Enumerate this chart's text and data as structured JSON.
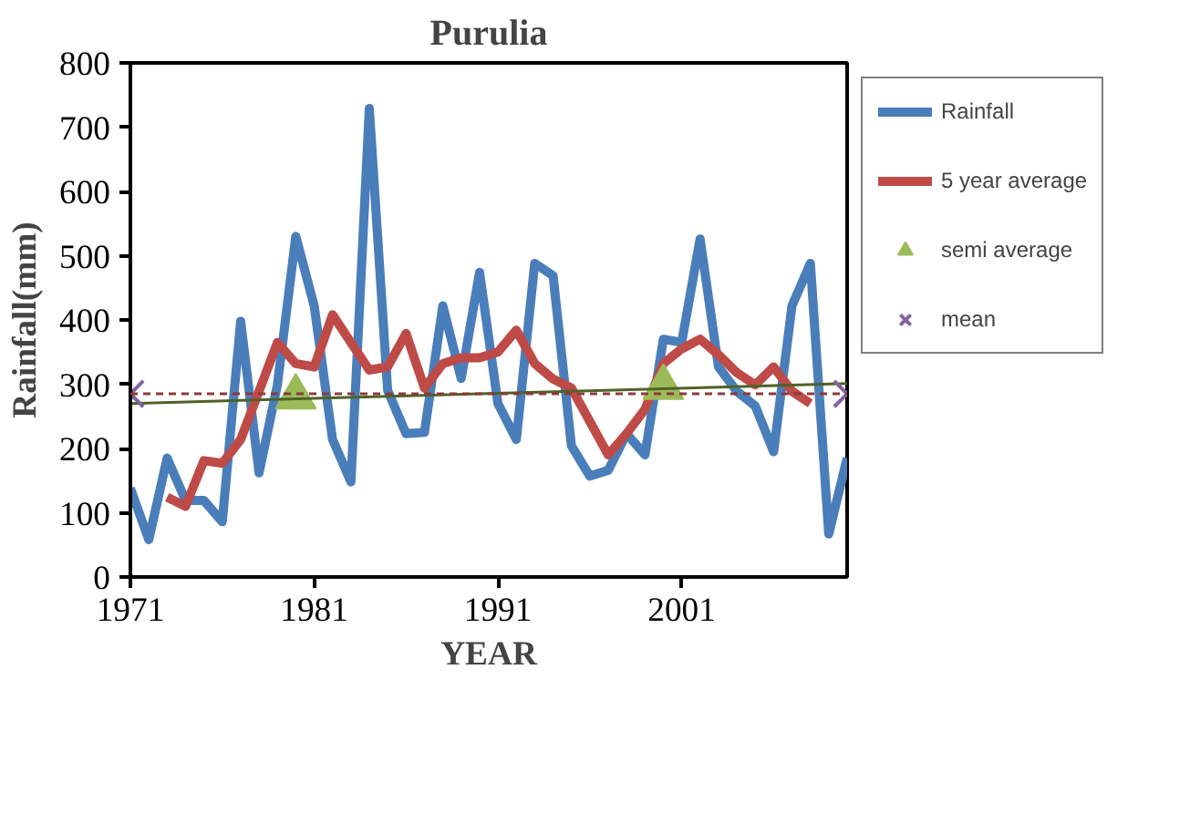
{
  "chart_data": {
    "type": "line",
    "title": "Purulia",
    "xlabel": "YEAR",
    "ylabel": "Rainfall(mm)",
    "xlim": [
      1971,
      2010
    ],
    "xticks": [
      1971,
      1981,
      1991,
      2001
    ],
    "ylim": [
      0,
      800
    ],
    "yticks": [
      0,
      100,
      200,
      300,
      400,
      500,
      600,
      700,
      800
    ],
    "grid": false,
    "legend": "right",
    "ref_lines": [
      {
        "axis": "y",
        "value": 285,
        "color": "#8b3a3a",
        "line_style": "dashed"
      }
    ],
    "series": [
      {
        "name": "Rainfall",
        "color": "#4a7ebb",
        "x": [
          1971,
          1972,
          1973,
          1974,
          1975,
          1976,
          1977,
          1978,
          1979,
          1980,
          1981,
          1982,
          1983,
          1984,
          1985,
          1986,
          1987,
          1988,
          1989,
          1990,
          1991,
          1992,
          1993,
          1994,
          1995,
          1996,
          1997,
          1998,
          1999,
          2000,
          2001,
          2002,
          2003,
          2004,
          2005,
          2006,
          2007,
          2008,
          2009,
          2010
        ],
        "values": [
          138,
          58,
          185,
          119,
          119,
          86,
          398,
          162,
          299,
          530,
          422,
          214,
          148,
          729,
          290,
          223,
          225,
          422,
          309,
          474,
          270,
          214,
          488,
          469,
          204,
          157,
          166,
          223,
          190,
          370,
          365,
          526,
          327,
          289,
          266,
          195,
          422,
          488,
          67,
          185
        ]
      },
      {
        "name": "5 year average",
        "color": "#be4b48",
        "x": [
          1973,
          1974,
          1975,
          1976,
          1977,
          1978,
          1979,
          1980,
          1981,
          1982,
          1983,
          1984,
          1985,
          1986,
          1987,
          1988,
          1989,
          1990,
          1991,
          1992,
          1993,
          1994,
          1995,
          1996,
          1997,
          1998,
          1999,
          2000,
          2001,
          2002,
          2003,
          2004,
          2005,
          2006,
          2007,
          2008
        ],
        "values": [
          124,
          110,
          181,
          177,
          214,
          289,
          365,
          332,
          327,
          408,
          365,
          322,
          327,
          379,
          294,
          332,
          341,
          341,
          350,
          384,
          332,
          308,
          294,
          242,
          190,
          223,
          261,
          332,
          355,
          370,
          346,
          318,
          299,
          327,
          289,
          270
        ]
      },
      {
        "name": "semi average",
        "type": "scatter",
        "marker": "triangle",
        "color": "#9bbb59",
        "x": [
          1980,
          2000
        ],
        "values": [
          280,
          295
        ]
      },
      {
        "type": "line",
        "color": "#4f6228",
        "x": [
          1971,
          2010
        ],
        "values": [
          270,
          301
        ]
      },
      {
        "name": "mean",
        "type": "scatter",
        "marker": "cross",
        "color": "#8064a2",
        "x": [
          1971,
          2010
        ],
        "values": [
          285,
          285
        ]
      }
    ]
  }
}
